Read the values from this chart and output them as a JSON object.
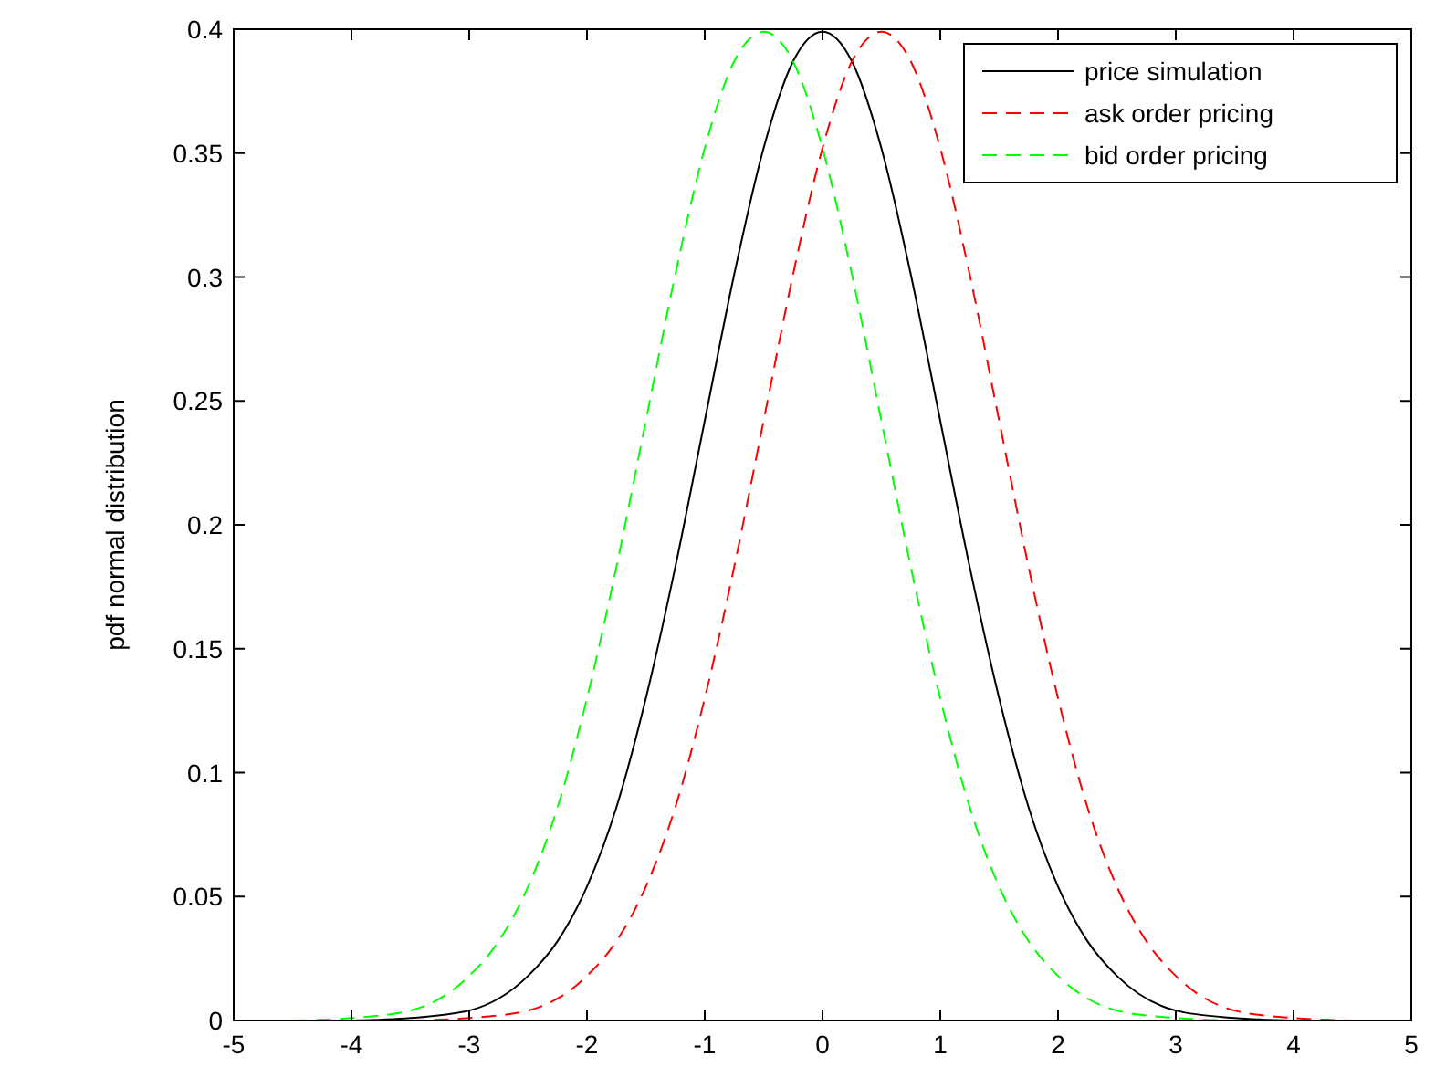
{
  "chart_data": {
    "type": "line",
    "ylabel": "pdf normal distribution",
    "xlim": [
      -5,
      5
    ],
    "xticks": [
      -5,
      -4,
      -3,
      -2,
      -1,
      0,
      1,
      2,
      3,
      4,
      5
    ],
    "ylim": [
      0,
      0.4
    ],
    "yticks": [
      0,
      0.05,
      0.1,
      0.15,
      0.2,
      0.25,
      0.3,
      0.35,
      0.4
    ],
    "grid": false,
    "legend": "top right",
    "marker": "none",
    "series": [
      {
        "name": "price simulation",
        "color": "#000000",
        "line_style": "solid",
        "x": [
          -4,
          -3.5,
          -3,
          -2.5,
          -2.25,
          -2,
          -1.75,
          -1.5,
          -1.25,
          -1,
          -0.75,
          -0.5,
          -0.25,
          0,
          0.25,
          0.5,
          0.75,
          1,
          1.25,
          1.5,
          1.75,
          2,
          2.25,
          2.5,
          3,
          3.5,
          4
        ],
        "values": [
          0.0,
          0.001,
          0.004,
          0.018,
          0.032,
          0.054,
          0.086,
          0.13,
          0.183,
          0.242,
          0.301,
          0.352,
          0.387,
          0.399,
          0.387,
          0.352,
          0.301,
          0.242,
          0.183,
          0.13,
          0.086,
          0.054,
          0.032,
          0.018,
          0.004,
          0.001,
          0.0
        ]
      },
      {
        "name": "ask order pricing",
        "color": "#ff0000",
        "line_style": "dashed",
        "x": [
          -3.5,
          -3,
          -2.5,
          -2,
          -1.75,
          -1.5,
          -1.25,
          -1,
          -0.75,
          -0.5,
          -0.25,
          0,
          0.25,
          0.5,
          0.75,
          1,
          1.25,
          1.5,
          1.75,
          2,
          2.25,
          2.5,
          2.75,
          3,
          3.5,
          4,
          4.5
        ],
        "values": [
          0.0,
          0.001,
          0.004,
          0.018,
          0.032,
          0.054,
          0.086,
          0.13,
          0.183,
          0.242,
          0.301,
          0.352,
          0.387,
          0.399,
          0.387,
          0.352,
          0.301,
          0.242,
          0.183,
          0.13,
          0.086,
          0.054,
          0.032,
          0.018,
          0.004,
          0.001,
          0.0
        ]
      },
      {
        "name": "bid order pricing",
        "color": "#00ff00",
        "line_style": "dashed",
        "x": [
          -4.5,
          -4,
          -3.5,
          -3,
          -2.75,
          -2.5,
          -2.25,
          -2,
          -1.75,
          -1.5,
          -1.25,
          -1,
          -0.75,
          -0.5,
          -0.25,
          0,
          0.25,
          0.5,
          0.75,
          1,
          1.25,
          1.5,
          1.75,
          2,
          2.5,
          3,
          3.5
        ],
        "values": [
          0.0,
          0.001,
          0.004,
          0.018,
          0.032,
          0.054,
          0.086,
          0.13,
          0.183,
          0.242,
          0.301,
          0.352,
          0.387,
          0.399,
          0.387,
          0.352,
          0.301,
          0.242,
          0.183,
          0.13,
          0.086,
          0.054,
          0.032,
          0.018,
          0.004,
          0.001,
          0.0
        ]
      }
    ]
  }
}
